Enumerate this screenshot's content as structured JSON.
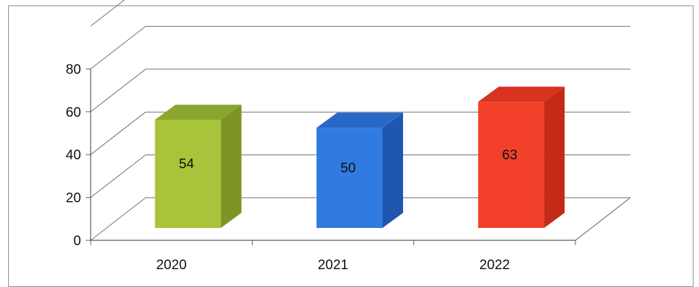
{
  "chart_data": {
    "type": "bar",
    "categories": [
      "2020",
      "2021",
      "2022"
    ],
    "values": [
      54,
      50,
      63
    ],
    "value_labels": [
      "54",
      "50",
      "63"
    ],
    "y_ticks": [
      "0",
      "20",
      "40",
      "60",
      "80"
    ],
    "ylim": [
      0,
      80
    ],
    "grid": true,
    "three_d": true,
    "title": "",
    "xlabel": "",
    "ylabel": "",
    "colors": {
      "2020": {
        "front": "#a8c43a",
        "side": "#7d9524",
        "top": "#8aa62c"
      },
      "2021": {
        "front": "#2f7be0",
        "side": "#1f57b0",
        "top": "#2a68c8"
      },
      "2022": {
        "front": "#f2402a",
        "side": "#c42a18",
        "top": "#d93220"
      }
    }
  }
}
